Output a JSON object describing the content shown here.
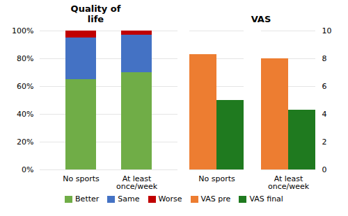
{
  "chart_data": [
    {
      "type": "bar",
      "title": "Quality of\nlife",
      "stacked": true,
      "categories": [
        "No sports",
        "At least\nonce/week"
      ],
      "series": [
        {
          "name": "Better",
          "color": "#70AD47",
          "values": [
            0.65,
            0.7
          ]
        },
        {
          "name": "Same",
          "color": "#4472C4",
          "values": [
            0.3,
            0.27
          ]
        },
        {
          "name": "Worse",
          "color": "#C00000",
          "values": [
            0.05,
            0.03
          ]
        }
      ],
      "ylim": [
        0,
        1.0
      ],
      "yticks": [
        {
          "value": 0,
          "label": "0%"
        },
        {
          "value": 0.2,
          "label": "20%"
        },
        {
          "value": 0.4,
          "label": "40%"
        },
        {
          "value": 0.6,
          "label": "60%"
        },
        {
          "value": 0.8,
          "label": "80%"
        },
        {
          "value": 1.0,
          "label": "100%"
        }
      ],
      "grid": true,
      "legend": "bottom"
    },
    {
      "type": "bar",
      "title": "VAS",
      "categories": [
        "No sports",
        "At least\nonce/week"
      ],
      "series": [
        {
          "name": "VAS pre",
          "color": "#ED7D31",
          "values": [
            8.3,
            8.0
          ]
        },
        {
          "name": "VAS final",
          "color": "#1F7A1F",
          "values": [
            5.0,
            4.3
          ]
        }
      ],
      "ylim": [
        0,
        10
      ],
      "yticks": [
        0,
        2,
        4,
        6,
        8,
        10
      ],
      "grid": true,
      "legend": "bottom"
    }
  ]
}
